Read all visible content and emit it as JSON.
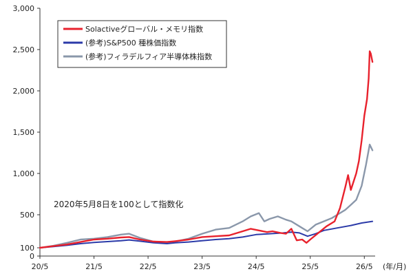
{
  "chart_data": {
    "type": "line",
    "xlabel": "(年/月)",
    "x_ticks": [
      "20/5",
      "21/5",
      "22/5",
      "23/5",
      "24/5",
      "25/5",
      "26/5"
    ],
    "y_ticks": [
      "0",
      "100",
      "500",
      "1,000",
      "1,500",
      "2,000",
      "2,500",
      "3,000"
    ],
    "y_tick_values": [
      0,
      100,
      500,
      1000,
      1500,
      2000,
      2500,
      3000
    ],
    "ylim": [
      0,
      3000
    ],
    "xlim": [
      2020.35,
      2026.5
    ],
    "grid": false,
    "legend_position": "top-left",
    "annotation": "2020年5月8日を100として指数化",
    "series": [
      {
        "name": "Solactiveグローバル・メモリ指数",
        "color": "#e8212c",
        "x": [
          2020.35,
          2020.6,
          2020.85,
          2021.1,
          2021.35,
          2021.6,
          2021.85,
          2022.0,
          2022.2,
          2022.45,
          2022.7,
          2022.85,
          2023.1,
          2023.35,
          2023.6,
          2023.85,
          2024.1,
          2024.25,
          2024.4,
          2024.55,
          2024.65,
          2024.8,
          2024.9,
          2025.0,
          2025.1,
          2025.2,
          2025.28,
          2025.35,
          2025.5,
          2025.65,
          2025.8,
          2025.9,
          2026.0,
          2026.05,
          2026.1,
          2026.2,
          2026.25,
          2026.3,
          2026.35,
          2026.4,
          2026.43,
          2026.45,
          2026.47,
          2026.5
        ],
        "values": [
          100,
          120,
          140,
          170,
          200,
          210,
          225,
          230,
          200,
          175,
          170,
          180,
          200,
          230,
          240,
          250,
          300,
          330,
          310,
          290,
          300,
          280,
          270,
          330,
          190,
          200,
          160,
          200,
          280,
          360,
          420,
          580,
          840,
          980,
          800,
          1000,
          1150,
          1400,
          1700,
          1900,
          2150,
          2480,
          2450,
          2350
        ]
      },
      {
        "name": "(参考)S&P500 種株価指数",
        "color": "#2b3aa8",
        "x": [
          2020.35,
          2020.6,
          2020.85,
          2021.1,
          2021.35,
          2021.6,
          2021.85,
          2022.0,
          2022.2,
          2022.45,
          2022.7,
          2022.85,
          2023.1,
          2023.35,
          2023.6,
          2023.85,
          2024.1,
          2024.35,
          2024.6,
          2024.85,
          2025.0,
          2025.15,
          2025.3,
          2025.45,
          2025.6,
          2025.85,
          2026.1,
          2026.3,
          2026.5
        ],
        "values": [
          100,
          115,
          130,
          150,
          165,
          175,
          185,
          195,
          180,
          160,
          150,
          160,
          170,
          185,
          200,
          210,
          230,
          260,
          270,
          280,
          290,
          280,
          240,
          270,
          310,
          340,
          370,
          400,
          420
        ]
      },
      {
        "name": "(参考)フィラデルフィア半導体株指数",
        "color": "#8a97aa",
        "x": [
          2020.35,
          2020.6,
          2020.85,
          2021.1,
          2021.35,
          2021.6,
          2021.85,
          2022.0,
          2022.2,
          2022.45,
          2022.7,
          2022.85,
          2023.1,
          2023.35,
          2023.6,
          2023.85,
          2024.1,
          2024.25,
          2024.4,
          2024.5,
          2024.6,
          2024.75,
          2024.9,
          2025.0,
          2025.15,
          2025.3,
          2025.45,
          2025.6,
          2025.75,
          2025.9,
          2026.0,
          2026.1,
          2026.2,
          2026.3,
          2026.38,
          2026.45,
          2026.5
        ],
        "values": [
          100,
          125,
          160,
          200,
          210,
          230,
          260,
          270,
          220,
          175,
          165,
          175,
          210,
          270,
          320,
          340,
          420,
          480,
          520,
          420,
          450,
          480,
          440,
          420,
          360,
          300,
          380,
          420,
          460,
          520,
          560,
          620,
          680,
          850,
          1100,
          1350,
          1280
        ]
      }
    ]
  }
}
